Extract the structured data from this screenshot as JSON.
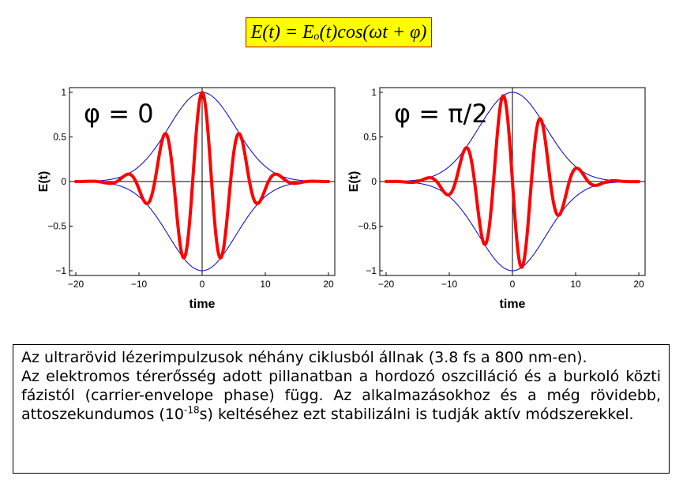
{
  "formula": "E(t) = Eₒ(t)cos(ωt + φ)",
  "chart_data": [
    {
      "type": "line",
      "phase_label": "φ = 0",
      "phase": 0,
      "xlabel": "time",
      "ylabel": "E(t)",
      "xlim": [
        -20,
        20
      ],
      "ylim": [
        -1,
        1
      ],
      "x_ticks": [
        -20,
        -10,
        0,
        10,
        20
      ],
      "x_tick_labels": [
        "−20",
        "−10",
        "0",
        "10",
        "20"
      ],
      "y_ticks": [
        1,
        0.5,
        0,
        -0.5,
        -1
      ],
      "y_tick_labels": [
        "1",
        "0.5",
        "0",
        "−0.5",
        "−1"
      ],
      "envelope_width": 7.5,
      "period": 6,
      "colors": {
        "field": "#ff0000",
        "envelope": "#0000cc"
      }
    },
    {
      "type": "line",
      "phase_label": "φ = π/2",
      "phase": 1.5708,
      "xlabel": "time",
      "ylabel": "E(t)",
      "xlim": [
        -20,
        20
      ],
      "ylim": [
        -1,
        1
      ],
      "x_ticks": [
        -20,
        -10,
        0,
        10,
        20
      ],
      "x_tick_labels": [
        "−20",
        "−10",
        "0",
        "10",
        "20"
      ],
      "y_ticks": [
        1,
        0.5,
        0,
        -0.5,
        -1
      ],
      "y_tick_labels": [
        "1",
        "0.5",
        "0",
        "−0.5",
        "−1"
      ],
      "envelope_width": 7.5,
      "period": 6,
      "colors": {
        "field": "#ff0000",
        "envelope": "#0000cc"
      }
    }
  ],
  "text": {
    "p1": "Az ultrarövid lézerimpulzusok néhány ciklusból állnak (3.8 fs a 800  nm-en).",
    "p2_a": "Az elektromos térerősség adott pillanatban a hordozó oszcilláció és a burkoló közti fázistól (carrier-envelope phase) függ. Az alkalmazásokhoz és a még rövidebb, attoszekundumos (10",
    "p2_sup": "-18",
    "p2_b": "s) keltéséhez ezt stabilizálni is tudják aktív módszerekkel."
  }
}
